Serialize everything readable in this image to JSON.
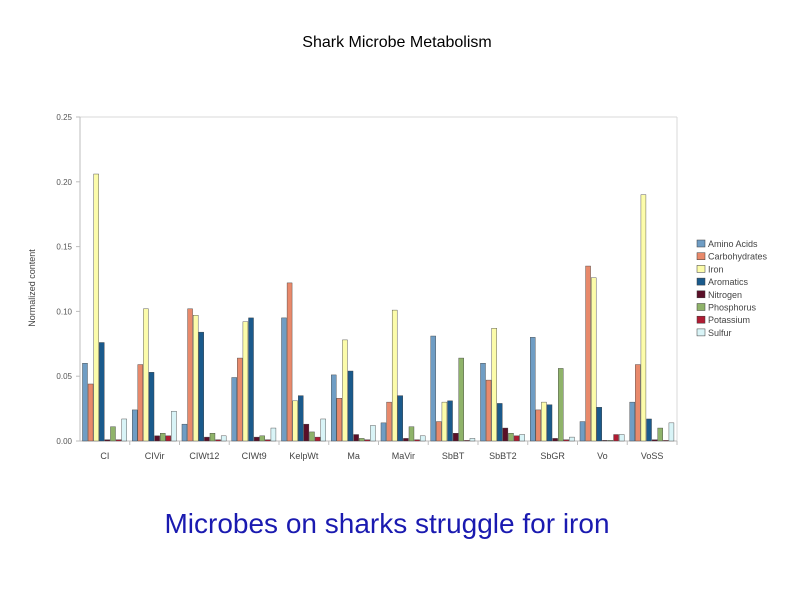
{
  "slide": {
    "title": "Shark Microbe Metabolism",
    "caption": "Microbes on sharks struggle for iron"
  },
  "chart_data": {
    "type": "bar",
    "title": "",
    "xlabel": "",
    "ylabel": "Normalized content",
    "ylim": [
      0,
      0.25
    ],
    "yticks": [
      "0.00",
      "0.05",
      "0.10",
      "0.15",
      "0.20",
      "0.25"
    ],
    "grid": false,
    "legend_position": "right",
    "categories": [
      "CI",
      "CIVir",
      "CIWt12",
      "CIWt9",
      "KelpWt",
      "Ma",
      "MaVir",
      "SbBT",
      "SbBT2",
      "SbGR",
      "Vo",
      "VoSS"
    ],
    "series": [
      {
        "name": "Amino Acids",
        "color": "#6f9dc4",
        "values": [
          0.06,
          0.024,
          0.013,
          0.049,
          0.095,
          0.051,
          0.014,
          0.081,
          0.06,
          0.08,
          0.015,
          0.03
        ]
      },
      {
        "name": "Carbohydrates",
        "color": "#e8896b",
        "values": [
          0.044,
          0.059,
          0.102,
          0.064,
          0.122,
          0.033,
          0.03,
          0.015,
          0.047,
          0.024,
          0.135,
          0.059
        ]
      },
      {
        "name": "Iron",
        "color": "#fcfcaa",
        "values": [
          0.206,
          0.102,
          0.097,
          0.092,
          0.031,
          0.078,
          0.101,
          0.03,
          0.087,
          0.03,
          0.126,
          0.19
        ]
      },
      {
        "name": "Aromatics",
        "color": "#1a5a8c",
        "values": [
          0.076,
          0.053,
          0.084,
          0.095,
          0.035,
          0.054,
          0.035,
          0.031,
          0.029,
          0.028,
          0.026,
          0.017
        ]
      },
      {
        "name": "Nitrogen",
        "color": "#5a0f28",
        "values": [
          0.001,
          0.004,
          0.003,
          0.003,
          0.013,
          0.005,
          0.002,
          0.006,
          0.01,
          0.002,
          0.0,
          0.001
        ]
      },
      {
        "name": "Phosphorus",
        "color": "#8fb36a",
        "values": [
          0.011,
          0.006,
          0.006,
          0.004,
          0.007,
          0.002,
          0.011,
          0.064,
          0.006,
          0.056,
          0.0,
          0.01
        ]
      },
      {
        "name": "Potassium",
        "color": "#b01c33",
        "values": [
          0.001,
          0.004,
          0.001,
          0.001,
          0.003,
          0.001,
          0.001,
          0.0,
          0.004,
          0.001,
          0.005,
          0.0
        ]
      },
      {
        "name": "Sulfur",
        "color": "#d9f4f7",
        "values": [
          0.017,
          0.023,
          0.004,
          0.01,
          0.017,
          0.012,
          0.004,
          0.002,
          0.005,
          0.003,
          0.005,
          0.014
        ]
      }
    ]
  }
}
